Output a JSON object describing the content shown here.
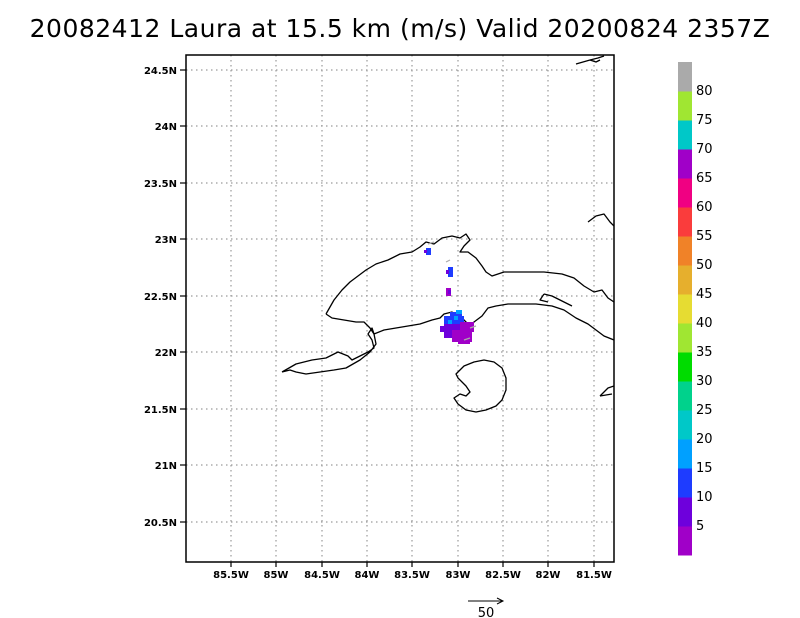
{
  "title": "20082412 Laura at 15.5 km (m/s) Valid 20200824 2357Z",
  "axes": {
    "lon_labels": [
      "85.5W",
      "85W",
      "84.5W",
      "84W",
      "83.5W",
      "83W",
      "82.5W",
      "82W",
      "81.5W"
    ],
    "lat_labels": [
      "24.5N",
      "24N",
      "23.5N",
      "23N",
      "22.5N",
      "22N",
      "21.5N",
      "21N",
      "20.5N"
    ],
    "lon_range": [
      -86.0,
      -81.4
    ],
    "lat_range": [
      20.15,
      24.6
    ],
    "grid": "dotted"
  },
  "colorbar": {
    "labels": [
      "5",
      "10",
      "15",
      "20",
      "25",
      "30",
      "35",
      "40",
      "45",
      "50",
      "55",
      "60",
      "65",
      "70",
      "75",
      "80"
    ],
    "colors": [
      "#a000c8",
      "#6e00dc",
      "#1e3cff",
      "#00a0ff",
      "#00c8c8",
      "#00d28c",
      "#00dc00",
      "#a0e632",
      "#e6dc32",
      "#e6af2d",
      "#f08228",
      "#fa3c3c",
      "#f00082",
      "#a000c8",
      "#00c8c8",
      "#a0e632",
      "#aaaaaa"
    ]
  },
  "reference_vector": {
    "label": "50"
  }
}
